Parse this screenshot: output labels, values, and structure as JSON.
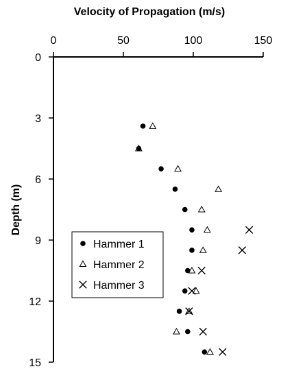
{
  "chart_data": {
    "type": "scatter",
    "x_axis": {
      "label": "Velocity of Propagation (m/s)",
      "position": "top",
      "range": [
        0,
        150
      ],
      "ticks": [
        0,
        50,
        100,
        150
      ],
      "tick_labels": [
        "0",
        "50",
        "100",
        "150"
      ]
    },
    "y_axis": {
      "label": "Depth (m)",
      "range": [
        0,
        15
      ],
      "reversed": true,
      "ticks": [
        0,
        3,
        6,
        9,
        12,
        15
      ],
      "tick_labels": [
        "0",
        "3",
        "6",
        "9",
        "12",
        "15"
      ]
    },
    "grid": false,
    "legend_position": "left",
    "series": [
      {
        "name": "Hammer 1",
        "marker": "dot",
        "color": "#000000",
        "points": [
          {
            "x": 64,
            "y": 3.4
          },
          {
            "x": 61,
            "y": 4.5
          },
          {
            "x": 77,
            "y": 5.5
          },
          {
            "x": 87,
            "y": 6.5
          },
          {
            "x": 94,
            "y": 7.5
          },
          {
            "x": 99,
            "y": 8.5
          },
          {
            "x": 99,
            "y": 9.5
          },
          {
            "x": 96,
            "y": 10.5
          },
          {
            "x": 94,
            "y": 11.5
          },
          {
            "x": 90,
            "y": 12.5
          },
          {
            "x": 96,
            "y": 13.5
          },
          {
            "x": 108,
            "y": 14.5
          }
        ]
      },
      {
        "name": "Hammer 2",
        "marker": "triangle",
        "color": "#000000",
        "points": [
          {
            "x": 71,
            "y": 3.4
          },
          {
            "x": 61,
            "y": 4.5
          },
          {
            "x": 89,
            "y": 5.5
          },
          {
            "x": 118,
            "y": 6.5
          },
          {
            "x": 106,
            "y": 7.5
          },
          {
            "x": 110,
            "y": 8.5
          },
          {
            "x": 107,
            "y": 9.5
          },
          {
            "x": 99,
            "y": 10.5
          },
          {
            "x": 102,
            "y": 11.5
          },
          {
            "x": 97,
            "y": 12.5
          },
          {
            "x": 88,
            "y": 13.5
          },
          {
            "x": 112,
            "y": 14.5
          }
        ]
      },
      {
        "name": "Hammer 3",
        "marker": "cross",
        "color": "#000000",
        "points": [
          {
            "x": 140,
            "y": 8.5
          },
          {
            "x": 135,
            "y": 9.5
          },
          {
            "x": 106,
            "y": 10.5
          },
          {
            "x": 99,
            "y": 11.5
          },
          {
            "x": 97,
            "y": 12.5
          },
          {
            "x": 107,
            "y": 13.5
          },
          {
            "x": 121,
            "y": 14.5
          }
        ]
      }
    ]
  }
}
